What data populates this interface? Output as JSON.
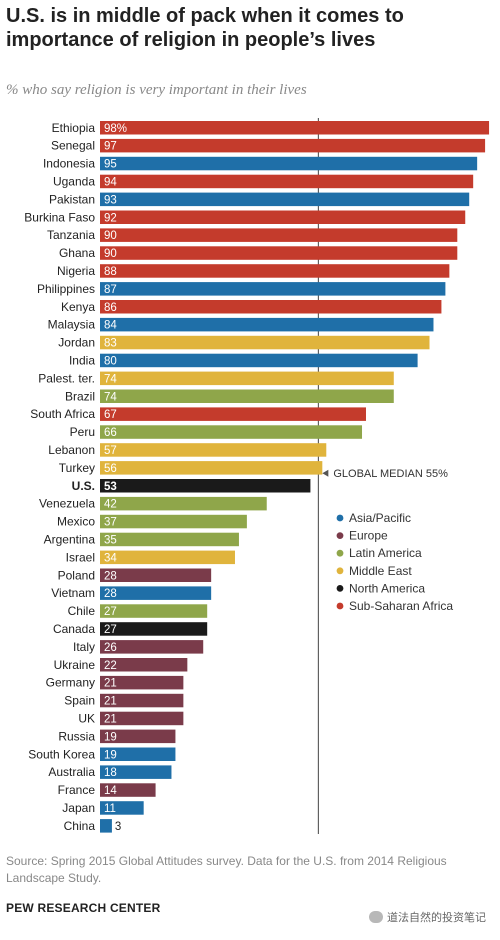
{
  "title": "U.S. is in middle of pack when it comes to importance of religion in people’s lives",
  "subtitle": "% who say religion is very important in their lives",
  "source": "Source: Spring 2015 Global Attitudes survey. Data for the U.S. from 2014 Religious Landscape Study.",
  "org": "PEW RESEARCH CENTER",
  "watermark": "道法自然的投资笔记",
  "colors": {
    "Asia/Pacific": "#1f6fa8",
    "Europe": "#7a3b4a",
    "Latin America": "#8fa64a",
    "Middle East": "#e0b43c",
    "North America": "#1a1a1a",
    "Sub-Saharan Africa": "#c43b2c"
  },
  "chart_data": {
    "type": "bar",
    "orientation": "horizontal",
    "xlim": [
      0,
      100
    ],
    "median": {
      "value": 55,
      "label": "GLOBAL MEDIAN 55%"
    },
    "legend": {
      "placement": "right",
      "items": [
        "Asia/Pacific",
        "Europe",
        "Latin America",
        "Middle East",
        "North America",
        "Sub-Saharan Africa"
      ]
    },
    "categories": [
      "Ethiopia",
      "Senegal",
      "Indonesia",
      "Uganda",
      "Pakistan",
      "Burkina Faso",
      "Tanzania",
      "Ghana",
      "Nigeria",
      "Philippines",
      "Kenya",
      "Malaysia",
      "Jordan",
      "India",
      "Palest. ter.",
      "Brazil",
      "South Africa",
      "Peru",
      "Lebanon",
      "Turkey",
      "U.S.",
      "Venezuela",
      "Mexico",
      "Argentina",
      "Israel",
      "Poland",
      "Vietnam",
      "Chile",
      "Canada",
      "Italy",
      "Ukraine",
      "Germany",
      "Spain",
      "UK",
      "Russia",
      "South Korea",
      "Australia",
      "France",
      "Japan",
      "China"
    ],
    "values": [
      98,
      97,
      95,
      94,
      93,
      92,
      90,
      90,
      88,
      87,
      86,
      84,
      83,
      80,
      74,
      74,
      67,
      66,
      57,
      56,
      53,
      42,
      37,
      35,
      34,
      28,
      28,
      27,
      27,
      26,
      22,
      21,
      21,
      21,
      19,
      19,
      18,
      14,
      11,
      3
    ],
    "value_labels": [
      "98%",
      "97",
      "95",
      "94",
      "93",
      "92",
      "90",
      "90",
      "88",
      "87",
      "86",
      "84",
      "83",
      "80",
      "74",
      "74",
      "67",
      "66",
      "57",
      "56",
      "53",
      "42",
      "37",
      "35",
      "34",
      "28",
      "28",
      "27",
      "27",
      "26",
      "22",
      "21",
      "21",
      "21",
      "19",
      "19",
      "18",
      "14",
      "11",
      "3"
    ],
    "regions": [
      "Sub-Saharan Africa",
      "Sub-Saharan Africa",
      "Asia/Pacific",
      "Sub-Saharan Africa",
      "Asia/Pacific",
      "Sub-Saharan Africa",
      "Sub-Saharan Africa",
      "Sub-Saharan Africa",
      "Sub-Saharan Africa",
      "Asia/Pacific",
      "Sub-Saharan Africa",
      "Asia/Pacific",
      "Middle East",
      "Asia/Pacific",
      "Middle East",
      "Latin America",
      "Sub-Saharan Africa",
      "Latin America",
      "Middle East",
      "Middle East",
      "North America",
      "Latin America",
      "Latin America",
      "Latin America",
      "Middle East",
      "Europe",
      "Asia/Pacific",
      "Latin America",
      "North America",
      "Europe",
      "Europe",
      "Europe",
      "Europe",
      "Europe",
      "Europe",
      "Asia/Pacific",
      "Asia/Pacific",
      "Europe",
      "Asia/Pacific",
      "Asia/Pacific"
    ],
    "highlight": "U.S."
  }
}
